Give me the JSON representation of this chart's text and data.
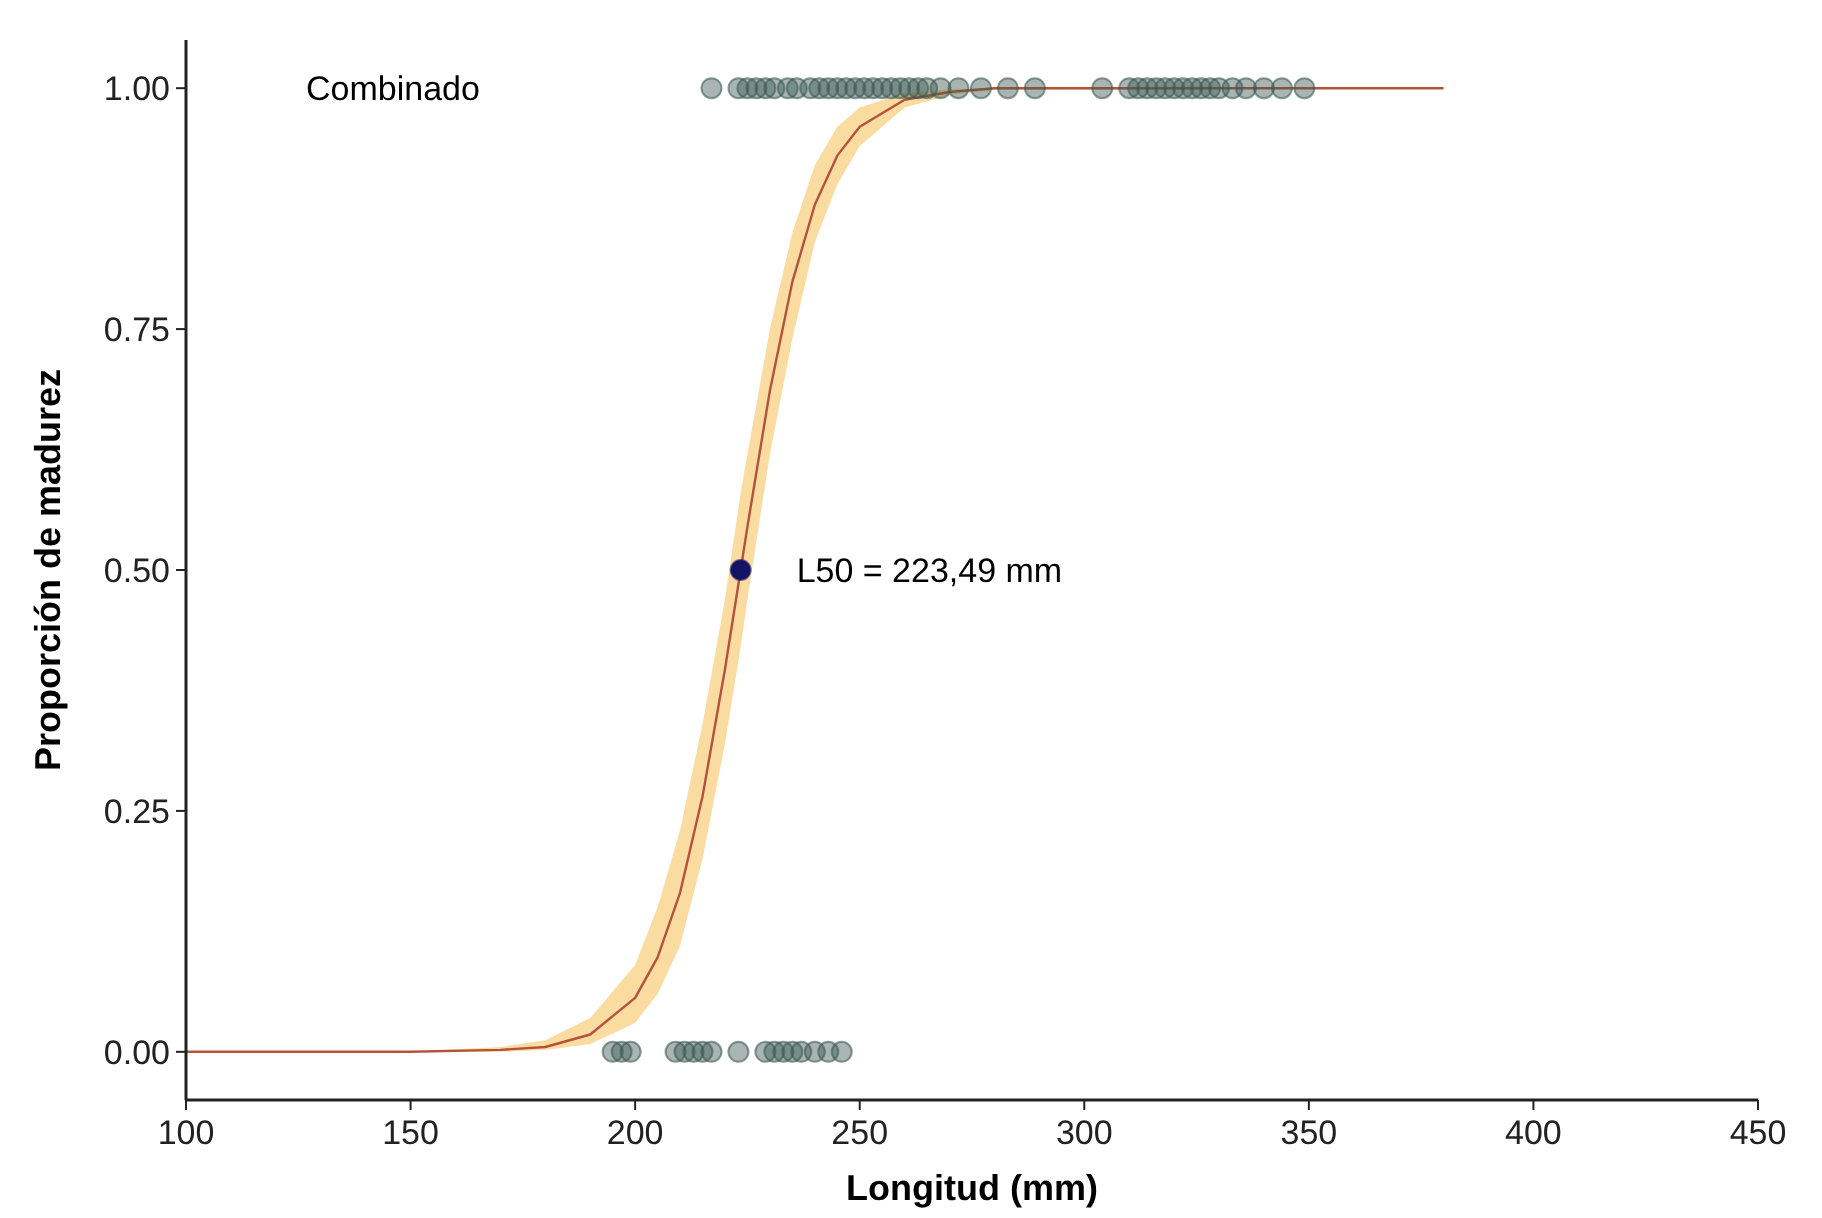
{
  "chart_data": {
    "type": "scatter",
    "xlabel": "Longitud (mm)",
    "ylabel": "Proporción de madurez",
    "xlim": [
      100,
      450
    ],
    "ylim": [
      -0.05,
      1.05
    ],
    "xticks": [
      100,
      150,
      200,
      250,
      300,
      350,
      400,
      450
    ],
    "yticks": [
      {
        "value": 0,
        "label": "0.00"
      },
      {
        "value": 0.25,
        "label": "0.25"
      },
      {
        "value": 0.5,
        "label": "0.50"
      },
      {
        "value": 0.75,
        "label": "0.75"
      },
      {
        "value": 1,
        "label": "1.00"
      }
    ],
    "grid": false,
    "annotations": [
      "Combinado",
      {
        "text": "L50 = 223,49 mm",
        "x": 223.49,
        "y": 0.5
      }
    ],
    "series": [
      {
        "type": "line",
        "color": "#b5523b",
        "marker": "none",
        "x": [
          100,
          150,
          170,
          180,
          190,
          200,
          205,
          210,
          215,
          220,
          223.49,
          225,
          230,
          235,
          240,
          245,
          250,
          260,
          270,
          280,
          380
        ],
        "values": [
          0,
          0,
          0.002,
          0.005,
          0.018,
          0.056,
          0.098,
          0.165,
          0.265,
          0.397,
          0.5,
          0.545,
          0.686,
          0.799,
          0.879,
          0.93,
          0.96,
          0.988,
          0.996,
          1,
          1
        ],
        "lower": [
          0,
          0,
          0,
          0.002,
          0.008,
          0.03,
          0.06,
          0.11,
          0.2,
          0.32,
          0.42,
          0.47,
          0.62,
          0.74,
          0.84,
          0.9,
          0.94,
          0.98,
          0.993,
          0.998,
          1
        ],
        "upper": [
          0,
          0,
          0.005,
          0.012,
          0.035,
          0.09,
          0.15,
          0.23,
          0.34,
          0.47,
          0.58,
          0.62,
          0.75,
          0.85,
          0.92,
          0.96,
          0.98,
          0.995,
          0.999,
          1,
          1
        ]
      },
      {
        "color": "#3d5a55",
        "marker": "circle",
        "x": [
          195,
          197,
          199,
          209,
          211,
          213,
          215,
          217,
          223,
          229,
          231,
          233,
          235,
          237,
          240,
          243,
          246,
          217,
          223,
          225,
          227,
          229,
          231,
          234,
          236,
          239,
          241,
          243,
          245,
          247,
          249,
          251,
          253,
          255,
          257,
          259,
          261,
          263,
          265,
          268,
          272,
          277,
          283,
          289,
          304,
          310,
          312,
          314,
          316,
          318,
          320,
          322,
          324,
          326,
          328,
          330,
          333,
          336,
          340,
          344,
          349
        ],
        "values": [
          0,
          0,
          0,
          0,
          0,
          0,
          0,
          0,
          0,
          0,
          0,
          0,
          0,
          0,
          0,
          0,
          0,
          1,
          1,
          1,
          1,
          1,
          1,
          1,
          1,
          1,
          1,
          1,
          1,
          1,
          1,
          1,
          1,
          1,
          1,
          1,
          1,
          1,
          1,
          1,
          1,
          1,
          1,
          1,
          1,
          1,
          1,
          1,
          1,
          1,
          1,
          1,
          1,
          1,
          1,
          1,
          1,
          1,
          1,
          1,
          1
        ]
      },
      {
        "color": "#141466",
        "marker": "circle",
        "x": [
          223.49
        ],
        "values": [
          0.5
        ]
      }
    ]
  }
}
